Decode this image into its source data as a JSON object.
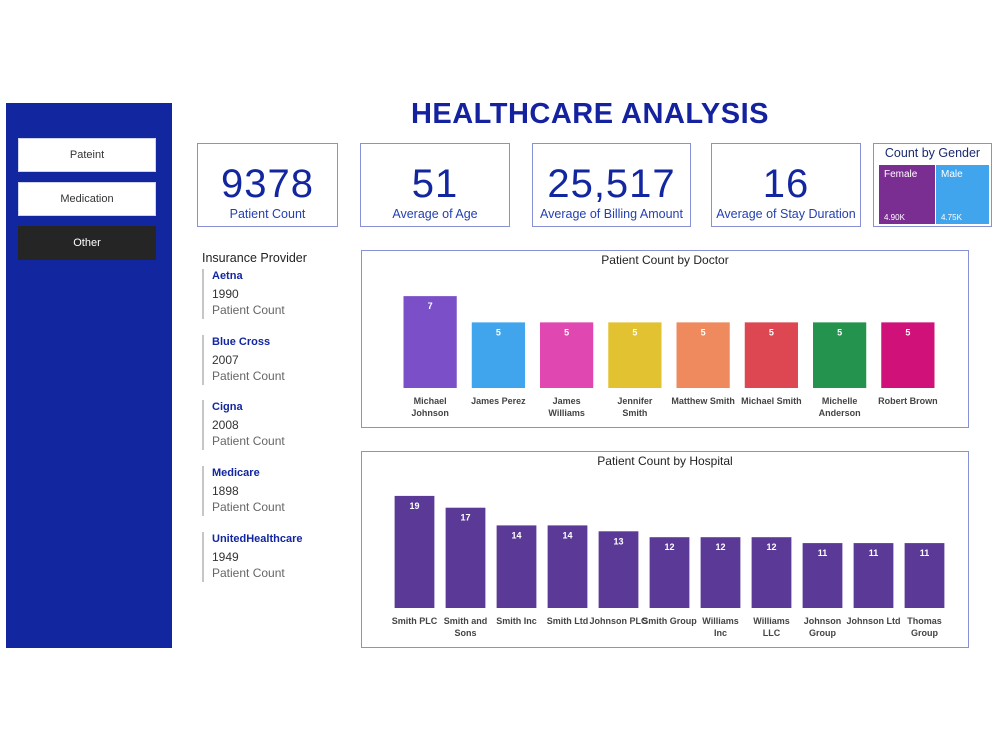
{
  "title": "HEALTHCARE ANALYSIS",
  "sidebar": {
    "items": [
      {
        "label": "Pateint",
        "active": false
      },
      {
        "label": "Medication",
        "active": false
      },
      {
        "label": "Other",
        "active": true
      }
    ]
  },
  "kpis": [
    {
      "value": "9378",
      "label": "Patient Count"
    },
    {
      "value": "51",
      "label": "Average of Age"
    },
    {
      "value": "25,517",
      "label": "Average of Billing Amount"
    },
    {
      "value": "16",
      "label": "Average of Stay Duration"
    }
  ],
  "gender": {
    "title": "Count by Gender",
    "female": {
      "label": "Female",
      "value": "4.90K",
      "count": 4900,
      "color": "#7B2E91"
    },
    "male": {
      "label": "Male",
      "value": "4.75K",
      "count": 4750,
      "color": "#41A5EE"
    }
  },
  "insurance": {
    "title": "Insurance Provider",
    "items": [
      {
        "name": "Aetna",
        "value": "1990",
        "label": "Patient Count"
      },
      {
        "name": "Blue Cross",
        "value": "2007",
        "label": "Patient Count"
      },
      {
        "name": "Cigna",
        "value": "2008",
        "label": "Patient Count"
      },
      {
        "name": "Medicare",
        "value": "1898",
        "label": "Patient Count"
      },
      {
        "name": "UnitedHealthcare",
        "value": "1949",
        "label": "Patient Count"
      }
    ]
  },
  "chart_data": [
    {
      "type": "bar",
      "title": "Patient Count by Doctor",
      "categories": [
        "Michael Johnson",
        "James Perez",
        "James Williams",
        "Jennifer Smith",
        "Matthew Smith",
        "Michael Smith",
        "Michelle Anderson",
        "Robert Brown"
      ],
      "values": [
        7,
        5,
        5,
        5,
        5,
        5,
        5,
        5
      ],
      "colors": [
        "#7B4FC8",
        "#41A5EE",
        "#E047B0",
        "#E3C232",
        "#EE8A5D",
        "#DC4752",
        "#24934E",
        "#D0117A"
      ],
      "ylim": [
        0,
        8
      ],
      "grid": false,
      "data_labels": true
    },
    {
      "type": "bar",
      "title": "Patient Count by Hospital",
      "categories": [
        "Smith PLC",
        "Smith and Sons",
        "Smith Inc",
        "Smith Ltd",
        "Johnson PLC",
        "Smith Group",
        "Williams Inc",
        "Williams LLC",
        "Johnson Group",
        "Johnson Ltd",
        "Thomas Group"
      ],
      "values": [
        19,
        17,
        14,
        14,
        13,
        12,
        12,
        12,
        11,
        11,
        11
      ],
      "colors": [
        "#5A3A96"
      ],
      "ylim": [
        0,
        20
      ],
      "grid": false,
      "data_labels": true
    }
  ]
}
